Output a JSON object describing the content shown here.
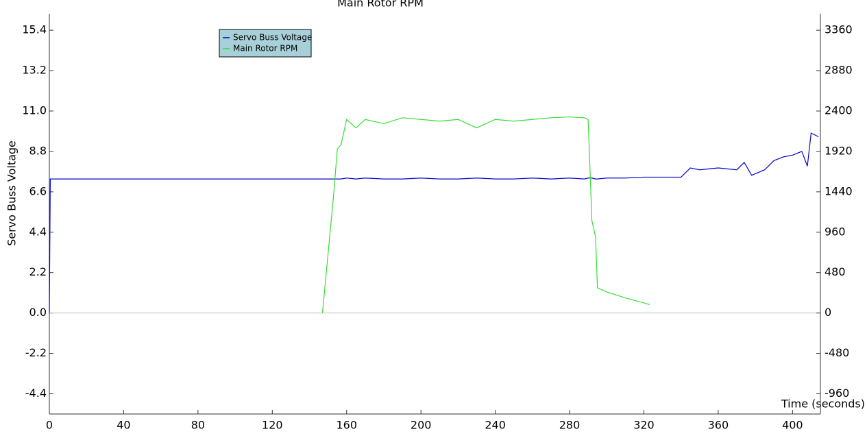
{
  "chart_data": {
    "type": "line",
    "title": "Main Rotor RPM",
    "x_label": "Time (seconds)",
    "y_label": "Servo Buss Voltage",
    "x": [
      0,
      0.5,
      5,
      20,
      40,
      60,
      80,
      100,
      120,
      140,
      147,
      150,
      153,
      155,
      157,
      160,
      165,
      170,
      180,
      190,
      200,
      210,
      220,
      230,
      240,
      250,
      260,
      270,
      280,
      288,
      290,
      292,
      294,
      295,
      300,
      310,
      320,
      323,
      330,
      340,
      345,
      350,
      360,
      370,
      374,
      378,
      385,
      390,
      395,
      400,
      405,
      408,
      410,
      414
    ],
    "series": [
      {
        "name": "Servo Buss Voltage",
        "color": "#0000cc",
        "values": [
          0,
          7.3,
          7.3,
          7.3,
          7.3,
          7.3,
          7.3,
          7.3,
          7.3,
          7.3,
          7.3,
          7.3,
          7.3,
          7.3,
          7.3,
          7.35,
          7.3,
          7.35,
          7.3,
          7.3,
          7.35,
          7.3,
          7.3,
          7.35,
          7.3,
          7.3,
          7.35,
          7.3,
          7.35,
          7.3,
          7.35,
          7.35,
          7.3,
          7.3,
          7.35,
          7.35,
          7.4,
          7.4,
          7.4,
          7.4,
          7.9,
          7.8,
          7.9,
          7.8,
          8.2,
          7.5,
          7.8,
          8.3,
          8.5,
          8.6,
          8.8,
          8.0,
          9.8,
          9.6
        ]
      },
      {
        "name": "Main Rotor RPM",
        "color": "#33dd33",
        "axis": "y2",
        "values": [
          null,
          null,
          null,
          null,
          null,
          null,
          null,
          null,
          null,
          null,
          0,
          700,
          1400,
          1950,
          2000,
          2300,
          2200,
          2300,
          2250,
          2320,
          2300,
          2280,
          2300,
          2200,
          2300,
          2280,
          2300,
          2320,
          2330,
          2320,
          2300,
          1100,
          900,
          300,
          250,
          180,
          120,
          100,
          null,
          null,
          null,
          null,
          null,
          null,
          null,
          null,
          null,
          null,
          null,
          null,
          null,
          null,
          null,
          null
        ]
      }
    ],
    "xlim": [
      0,
      415
    ],
    "xticks": [
      0,
      40,
      80,
      120,
      160,
      200,
      240,
      280,
      320,
      360,
      400
    ],
    "ylim": [
      -5.5,
      16.3
    ],
    "yticks": [
      -4.4,
      -2.2,
      {
        "value": 0,
        "label": "0.0"
      },
      2.2,
      4.4,
      6.6,
      8.8,
      {
        "value": 11,
        "label": "11.0"
      },
      13.2,
      15.4
    ],
    "y2lim": [
      -1200,
      3556.4
    ],
    "y2ticks": [
      -960,
      -480,
      0,
      480,
      960,
      1440,
      1920,
      2400,
      2880,
      3360
    ],
    "legend": true
  }
}
